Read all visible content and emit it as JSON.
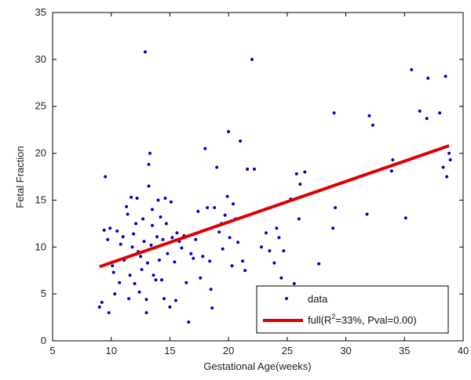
{
  "chart_data": {
    "type": "scatter",
    "title": "",
    "xlabel": "Gestational Age(weeks)",
    "ylabel": "Fetal Fraction",
    "xlim": [
      5,
      40
    ],
    "ylim": [
      0,
      35
    ],
    "xticks": [
      5,
      10,
      15,
      20,
      25,
      30,
      35,
      40
    ],
    "yticks": [
      0,
      5,
      10,
      15,
      20,
      25,
      30,
      35
    ],
    "xtick_labels": [
      "5",
      "10",
      "15",
      "20",
      "25",
      "30",
      "35",
      "40"
    ],
    "ytick_labels": [
      "0",
      "5",
      "10",
      "15",
      "20",
      "25",
      "30",
      "35"
    ],
    "grid": false,
    "legend_position": "bottom-right",
    "series": [
      {
        "name": "data",
        "kind": "scatter",
        "color": "#0000cc",
        "marker": "dot",
        "points": [
          [
            9.0,
            3.6
          ],
          [
            9.2,
            4.1
          ],
          [
            9.4,
            11.8
          ],
          [
            9.5,
            17.5
          ],
          [
            9.7,
            10.8
          ],
          [
            9.8,
            3.0
          ],
          [
            9.9,
            12.0
          ],
          [
            10.1,
            8.0
          ],
          [
            10.2,
            7.3
          ],
          [
            10.3,
            5.0
          ],
          [
            10.5,
            11.7
          ],
          [
            10.7,
            6.2
          ],
          [
            10.8,
            10.3
          ],
          [
            11.0,
            11.1
          ],
          [
            11.1,
            8.6
          ],
          [
            11.3,
            14.3
          ],
          [
            11.4,
            13.5
          ],
          [
            11.5,
            4.5
          ],
          [
            11.6,
            7.0
          ],
          [
            11.7,
            15.3
          ],
          [
            11.8,
            10.0
          ],
          [
            11.9,
            11.4
          ],
          [
            12.0,
            6.1
          ],
          [
            12.1,
            12.5
          ],
          [
            12.2,
            15.2
          ],
          [
            12.3,
            9.5
          ],
          [
            12.4,
            5.2
          ],
          [
            12.5,
            9.0
          ],
          [
            12.6,
            7.6
          ],
          [
            12.7,
            13.0
          ],
          [
            12.8,
            10.6
          ],
          [
            12.9,
            30.8
          ],
          [
            13.0,
            3.0
          ],
          [
            13.0,
            4.4
          ],
          [
            13.1,
            8.3
          ],
          [
            13.2,
            16.5
          ],
          [
            13.2,
            18.8
          ],
          [
            13.3,
            20.0
          ],
          [
            13.4,
            10.2
          ],
          [
            13.5,
            12.3
          ],
          [
            13.5,
            14.0
          ],
          [
            13.6,
            7.0
          ],
          [
            13.7,
            9.9
          ],
          [
            13.8,
            6.5
          ],
          [
            13.9,
            11.1
          ],
          [
            14.0,
            15.0
          ],
          [
            14.1,
            8.6
          ],
          [
            14.2,
            13.2
          ],
          [
            14.3,
            6.5
          ],
          [
            14.4,
            10.8
          ],
          [
            14.5,
            4.5
          ],
          [
            14.6,
            15.2
          ],
          [
            14.7,
            12.5
          ],
          [
            14.8,
            9.3
          ],
          [
            15.0,
            3.6
          ],
          [
            15.1,
            14.8
          ],
          [
            15.2,
            11.0
          ],
          [
            15.4,
            8.4
          ],
          [
            15.5,
            4.3
          ],
          [
            15.6,
            11.5
          ],
          [
            15.8,
            10.6
          ],
          [
            16.0,
            9.9
          ],
          [
            16.2,
            11.2
          ],
          [
            16.4,
            6.2
          ],
          [
            16.6,
            2.0
          ],
          [
            16.8,
            9.3
          ],
          [
            17.0,
            8.8
          ],
          [
            17.2,
            10.8
          ],
          [
            17.4,
            13.8
          ],
          [
            17.6,
            6.7
          ],
          [
            17.8,
            9.0
          ],
          [
            18.0,
            20.5
          ],
          [
            18.2,
            14.2
          ],
          [
            18.4,
            8.5
          ],
          [
            18.5,
            5.5
          ],
          [
            18.6,
            3.5
          ],
          [
            18.8,
            14.2
          ],
          [
            19.0,
            18.5
          ],
          [
            19.2,
            11.6
          ],
          [
            19.4,
            12.5
          ],
          [
            19.5,
            9.8
          ],
          [
            19.7,
            13.4
          ],
          [
            19.9,
            15.4
          ],
          [
            20.0,
            22.3
          ],
          [
            20.1,
            11.0
          ],
          [
            20.3,
            8.0
          ],
          [
            20.4,
            14.6
          ],
          [
            20.6,
            13.0
          ],
          [
            20.8,
            10.5
          ],
          [
            21.0,
            21.3
          ],
          [
            21.2,
            8.5
          ],
          [
            21.4,
            7.5
          ],
          [
            21.6,
            18.3
          ],
          [
            22.0,
            30.0
          ],
          [
            22.2,
            18.3
          ],
          [
            22.8,
            10.0
          ],
          [
            23.2,
            11.5
          ],
          [
            23.5,
            9.6
          ],
          [
            23.9,
            8.3
          ],
          [
            24.1,
            12.0
          ],
          [
            24.3,
            11.0
          ],
          [
            24.5,
            6.7
          ],
          [
            24.7,
            9.6
          ],
          [
            25.3,
            15.1
          ],
          [
            25.6,
            6.1
          ],
          [
            25.8,
            17.8
          ],
          [
            26.0,
            13.0
          ],
          [
            26.1,
            16.7
          ],
          [
            26.5,
            18.0
          ],
          [
            27.7,
            8.2
          ],
          [
            28.9,
            12.0
          ],
          [
            29.0,
            24.3
          ],
          [
            29.1,
            14.2
          ],
          [
            31.8,
            13.5
          ],
          [
            32.0,
            24.0
          ],
          [
            32.3,
            23.0
          ],
          [
            33.9,
            18.1
          ],
          [
            34.0,
            19.3
          ],
          [
            35.1,
            13.1
          ],
          [
            35.6,
            28.9
          ],
          [
            36.3,
            24.5
          ],
          [
            36.9,
            23.7
          ],
          [
            37.0,
            28.0
          ],
          [
            38.0,
            24.3
          ],
          [
            38.3,
            18.5
          ],
          [
            38.5,
            28.2
          ],
          [
            38.6,
            17.5
          ],
          [
            38.8,
            20.0
          ],
          [
            38.9,
            19.3
          ]
        ]
      },
      {
        "name": "full(R²=33%, Pval=0.00)",
        "kind": "line",
        "color": "#dd0000",
        "points": [
          [
            9.0,
            7.9
          ],
          [
            38.8,
            20.8
          ]
        ]
      }
    ]
  },
  "legend": {
    "items": [
      {
        "label": "data"
      },
      {
        "label_prefix": "full(R",
        "label_sup": "2",
        "label_suffix": "=33%, Pval=0.00)"
      }
    ]
  }
}
